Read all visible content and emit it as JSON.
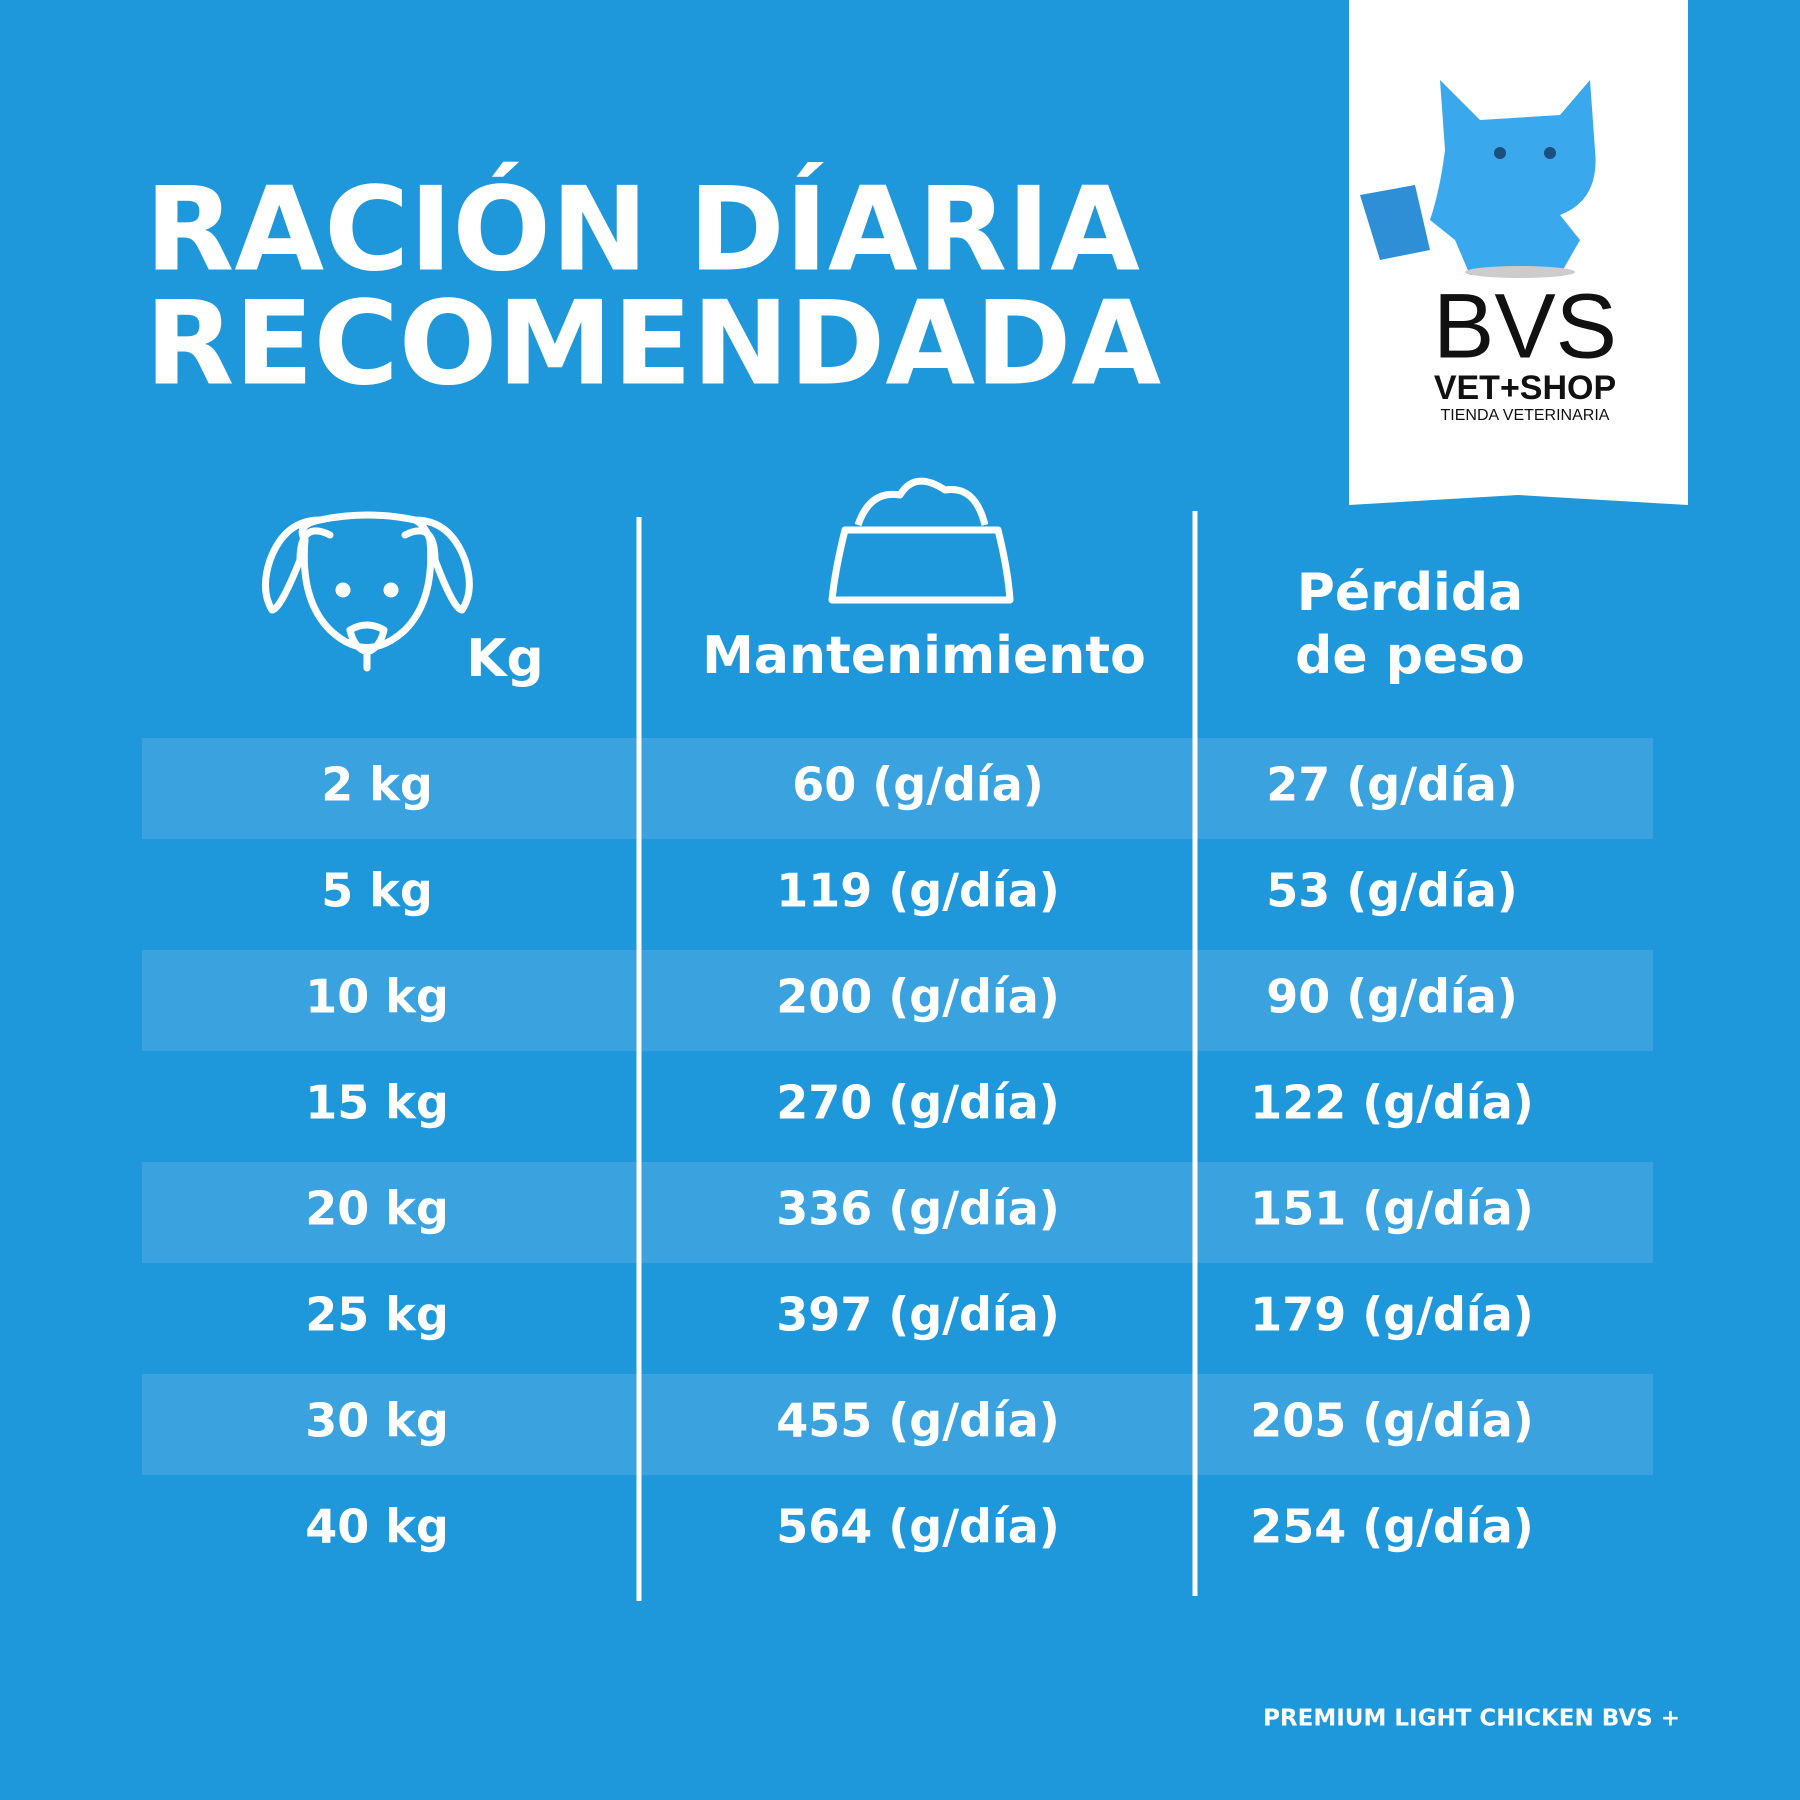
{
  "header": {
    "title_lines": [
      "RACIÓN DÍARIA",
      "RECOMENDADA"
    ]
  },
  "logo": {
    "brand": "BVS",
    "subbrand": "VET+SHOP",
    "tagline": "TIENDA VETERINARIA"
  },
  "table": {
    "headers": {
      "weight": "Kg",
      "maintenance": "Mantenimiento",
      "loss": [
        "Pérdida",
        "de peso"
      ]
    },
    "rows": [
      [
        "2 kg",
        "60 (g/día)",
        "27 (g/día)"
      ],
      [
        "5 kg",
        "119 (g/día)",
        "53 (g/día)"
      ],
      [
        "10 kg",
        "200 (g/día)",
        "90 (g/día)"
      ],
      [
        "15 kg",
        "270 (g/día)",
        "122 (g/día)"
      ],
      [
        "20 kg",
        "336 (g/día)",
        "151 (g/día)"
      ],
      [
        "25 kg",
        "397 (g/día)",
        "179 (g/día)"
      ],
      [
        "30 kg",
        "455 (g/día)",
        "205 (g/día)"
      ],
      [
        "40 kg",
        "564 (g/día)",
        "254 (g/día)"
      ]
    ]
  },
  "footer": {
    "text": "PREMIUM LIGHT CHICKEN BVS +"
  }
}
